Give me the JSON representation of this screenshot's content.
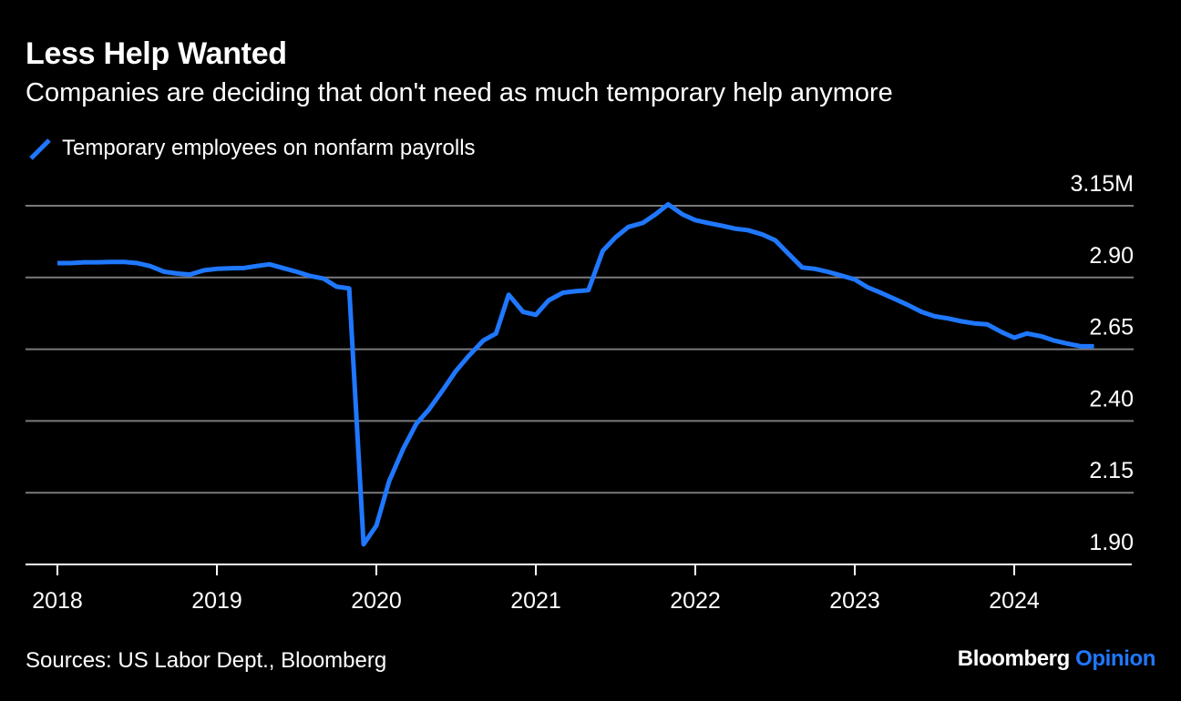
{
  "title": "Less Help Wanted",
  "subtitle": "Companies are deciding that don't need as much temporary help anymore",
  "source": "Sources: US Labor Dept., Bloomberg",
  "brand": {
    "name": "Bloomberg",
    "section": "Opinion"
  },
  "colors": {
    "background": "#000000",
    "line": "#1f78ff",
    "grid": "#7a7a7a",
    "text": "#ffffff"
  },
  "chart_data": {
    "type": "line",
    "title": "Less Help Wanted",
    "subtitle": "Companies are deciding that don't need as much temporary help anymore",
    "xlabel": "",
    "ylabel": "",
    "y_unit": "M",
    "ylim": [
      1.9,
      3.15
    ],
    "xlim": [
      2017.83,
      2024.83
    ],
    "y_ticks": [
      1.9,
      2.15,
      2.4,
      2.65,
      2.9,
      3.15
    ],
    "y_tick_labels": [
      "1.90",
      "2.15",
      "2.40",
      "2.65",
      "2.90",
      "3.15M"
    ],
    "x_ticks": [
      2018,
      2019,
      2020,
      2021,
      2022,
      2023,
      2024
    ],
    "x_tick_labels": [
      "2018",
      "2019",
      "2020",
      "2021",
      "2022",
      "2023",
      "2024"
    ],
    "grid": true,
    "legend_position": "top-left",
    "series": [
      {
        "name": "Temporary employees on nonfarm payrolls",
        "color": "#1f78ff",
        "x": [
          2018.0,
          2018.08,
          2018.17,
          2018.25,
          2018.33,
          2018.42,
          2018.5,
          2018.58,
          2018.67,
          2018.75,
          2018.83,
          2018.92,
          2019.0,
          2019.08,
          2019.17,
          2019.25,
          2019.33,
          2019.42,
          2019.5,
          2019.58,
          2019.67,
          2019.75,
          2019.83,
          2019.92,
          2020.0,
          2020.08,
          2020.17,
          2020.25,
          2020.33,
          2020.42,
          2020.5,
          2020.58,
          2020.67,
          2020.75,
          2020.83,
          2020.92,
          2021.0,
          2021.08,
          2021.17,
          2021.25,
          2021.33,
          2021.42,
          2021.5,
          2021.58,
          2021.67,
          2021.75,
          2021.83,
          2021.92,
          2022.0,
          2022.08,
          2022.17,
          2022.25,
          2022.33,
          2022.42,
          2022.5,
          2022.58,
          2022.67,
          2022.75,
          2022.83,
          2022.92,
          2023.0,
          2023.08,
          2023.17,
          2023.25,
          2023.33,
          2023.42,
          2023.5,
          2023.58,
          2023.67,
          2023.75,
          2023.83,
          2023.92,
          2024.0,
          2024.08,
          2024.17,
          2024.25,
          2024.33,
          2024.42,
          2024.5
        ],
        "values": [
          2.95,
          2.95,
          2.953,
          2.953,
          2.954,
          2.954,
          2.95,
          2.94,
          2.92,
          2.914,
          2.91,
          2.925,
          2.93,
          2.932,
          2.933,
          2.94,
          2.946,
          2.932,
          2.92,
          2.906,
          2.896,
          2.868,
          2.862,
          1.97,
          2.035,
          2.19,
          2.305,
          2.39,
          2.44,
          2.51,
          2.575,
          2.627,
          2.68,
          2.705,
          2.84,
          2.78,
          2.77,
          2.82,
          2.847,
          2.852,
          2.856,
          2.993,
          3.04,
          3.076,
          3.09,
          3.12,
          3.155,
          3.12,
          3.1,
          3.09,
          3.08,
          3.07,
          3.065,
          3.05,
          3.03,
          2.985,
          2.935,
          2.93,
          2.92,
          2.906,
          2.893,
          2.866,
          2.845,
          2.825,
          2.805,
          2.78,
          2.765,
          2.758,
          2.747,
          2.74,
          2.737,
          2.71,
          2.69,
          2.705,
          2.695,
          2.68,
          2.67,
          2.66,
          2.66
        ]
      }
    ]
  }
}
